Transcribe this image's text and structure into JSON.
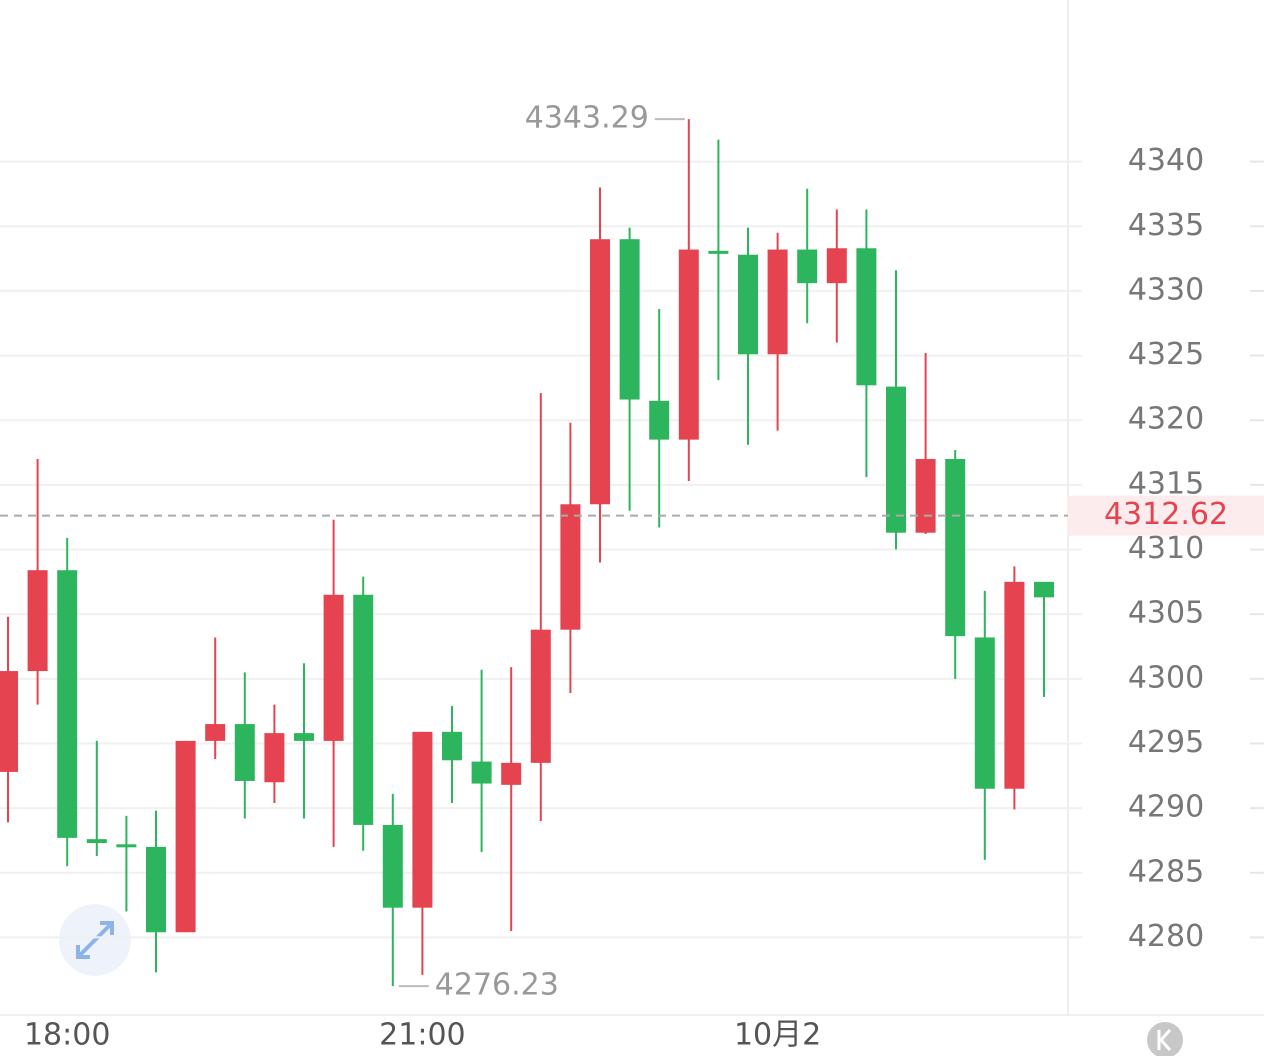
{
  "chart_data": {
    "type": "candlestick",
    "categories": [
      null,
      null,
      "18:00",
      null,
      null,
      null,
      null,
      null,
      null,
      null,
      null,
      null,
      null,
      null,
      "21:00",
      null,
      null,
      null,
      null,
      null,
      null,
      null,
      null,
      null,
      null,
      null,
      "10月2",
      null,
      null,
      null,
      null,
      null,
      null,
      null,
      null,
      null
    ],
    "open": [
      4292.8,
      4300.6,
      4308.4,
      4287.6,
      4287.2,
      4287.0,
      4280.4,
      4295.2,
      4296.5,
      4292.0,
      4295.8,
      4295.2,
      4306.5,
      4288.7,
      4282.3,
      4295.9,
      4293.6,
      4291.8,
      4293.5,
      4303.8,
      4313.5,
      4334.0,
      4321.5,
      4318.5,
      4333.1,
      4332.8,
      4325.1,
      4333.2,
      4330.6,
      4333.3,
      4322.6,
      4311.3,
      4317.0,
      4303.2,
      4291.5,
      4307.5
    ],
    "high": [
      4304.8,
      4317.0,
      4310.9,
      4295.2,
      4289.4,
      4289.8,
      4295.2,
      4303.2,
      4300.5,
      4298.0,
      4301.2,
      4312.3,
      4307.9,
      4291.1,
      4295.9,
      4297.9,
      4300.7,
      4300.9,
      4322.1,
      4319.8,
      4338.0,
      4334.9,
      4328.6,
      4343.29,
      4341.7,
      4334.9,
      4334.5,
      4337.9,
      4336.3,
      4336.3,
      4331.6,
      4325.2,
      4317.7,
      4306.8,
      4308.7,
      4307.5
    ],
    "low": [
      4288.9,
      4298.0,
      4285.5,
      4286.3,
      4282.0,
      4277.3,
      4280.4,
      4293.8,
      4289.2,
      4290.4,
      4289.2,
      4287.0,
      4286.7,
      4276.23,
      4277.1,
      4290.4,
      4286.6,
      4280.5,
      4289.0,
      4298.9,
      4309.0,
      4313.0,
      4311.7,
      4315.3,
      4323.1,
      4318.1,
      4319.2,
      4327.5,
      4326.0,
      4315.6,
      4310.0,
      4311.2,
      4300.0,
      4286.0,
      4289.9,
      4298.6
    ],
    "close": [
      4300.6,
      4308.4,
      4287.7,
      4287.3,
      4287.0,
      4280.4,
      4295.2,
      4296.5,
      4292.1,
      4295.8,
      4295.2,
      4306.5,
      4288.7,
      4282.3,
      4295.9,
      4293.7,
      4291.9,
      4293.5,
      4303.8,
      4313.5,
      4334.0,
      4321.6,
      4318.5,
      4333.2,
      4332.9,
      4325.1,
      4333.2,
      4330.6,
      4333.3,
      4322.7,
      4311.3,
      4317.0,
      4303.3,
      4291.5,
      4307.5,
      4306.3
    ],
    "up_color": "#e5434f",
    "down_color": "#2db55d",
    "ylim": [
      4274.0,
      4352.5
    ],
    "yticks": [
      4280,
      4285,
      4290,
      4295,
      4300,
      4305,
      4310,
      4315,
      4320,
      4325,
      4330,
      4335,
      4340
    ],
    "grid": true,
    "last_price": 4312.62,
    "high_label": 4343.29,
    "low_label": 4276.23
  }
}
